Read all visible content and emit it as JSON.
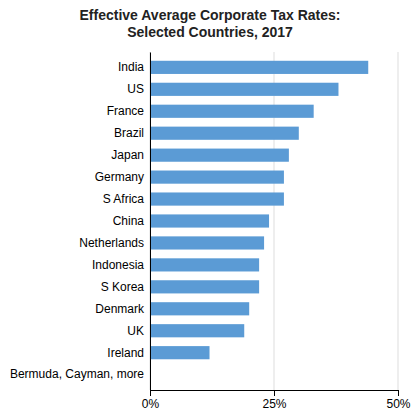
{
  "chart_data": {
    "type": "bar",
    "orientation": "horizontal",
    "title": "Effective Average Corporate Tax Rates:\nSelected Countries, 2017",
    "categories": [
      "Bermuda, Cayman, more",
      "Ireland",
      "UK",
      "Denmark",
      "S Korea",
      "Indonesia",
      "Netherlands",
      "China",
      "S Africa",
      "Germany",
      "Japan",
      "Brazil",
      "France",
      "US",
      "India"
    ],
    "values": [
      0,
      12,
      19,
      20,
      22,
      22,
      23,
      24,
      27,
      27,
      28,
      30,
      33,
      38,
      44
    ],
    "color": "#5B9BD5",
    "xlim": [
      0,
      50
    ],
    "xticks": [
      {
        "value": 0,
        "label": "0%"
      },
      {
        "value": 25,
        "label": "25%"
      },
      {
        "value": 50,
        "label": "50%"
      }
    ],
    "grid": true
  }
}
